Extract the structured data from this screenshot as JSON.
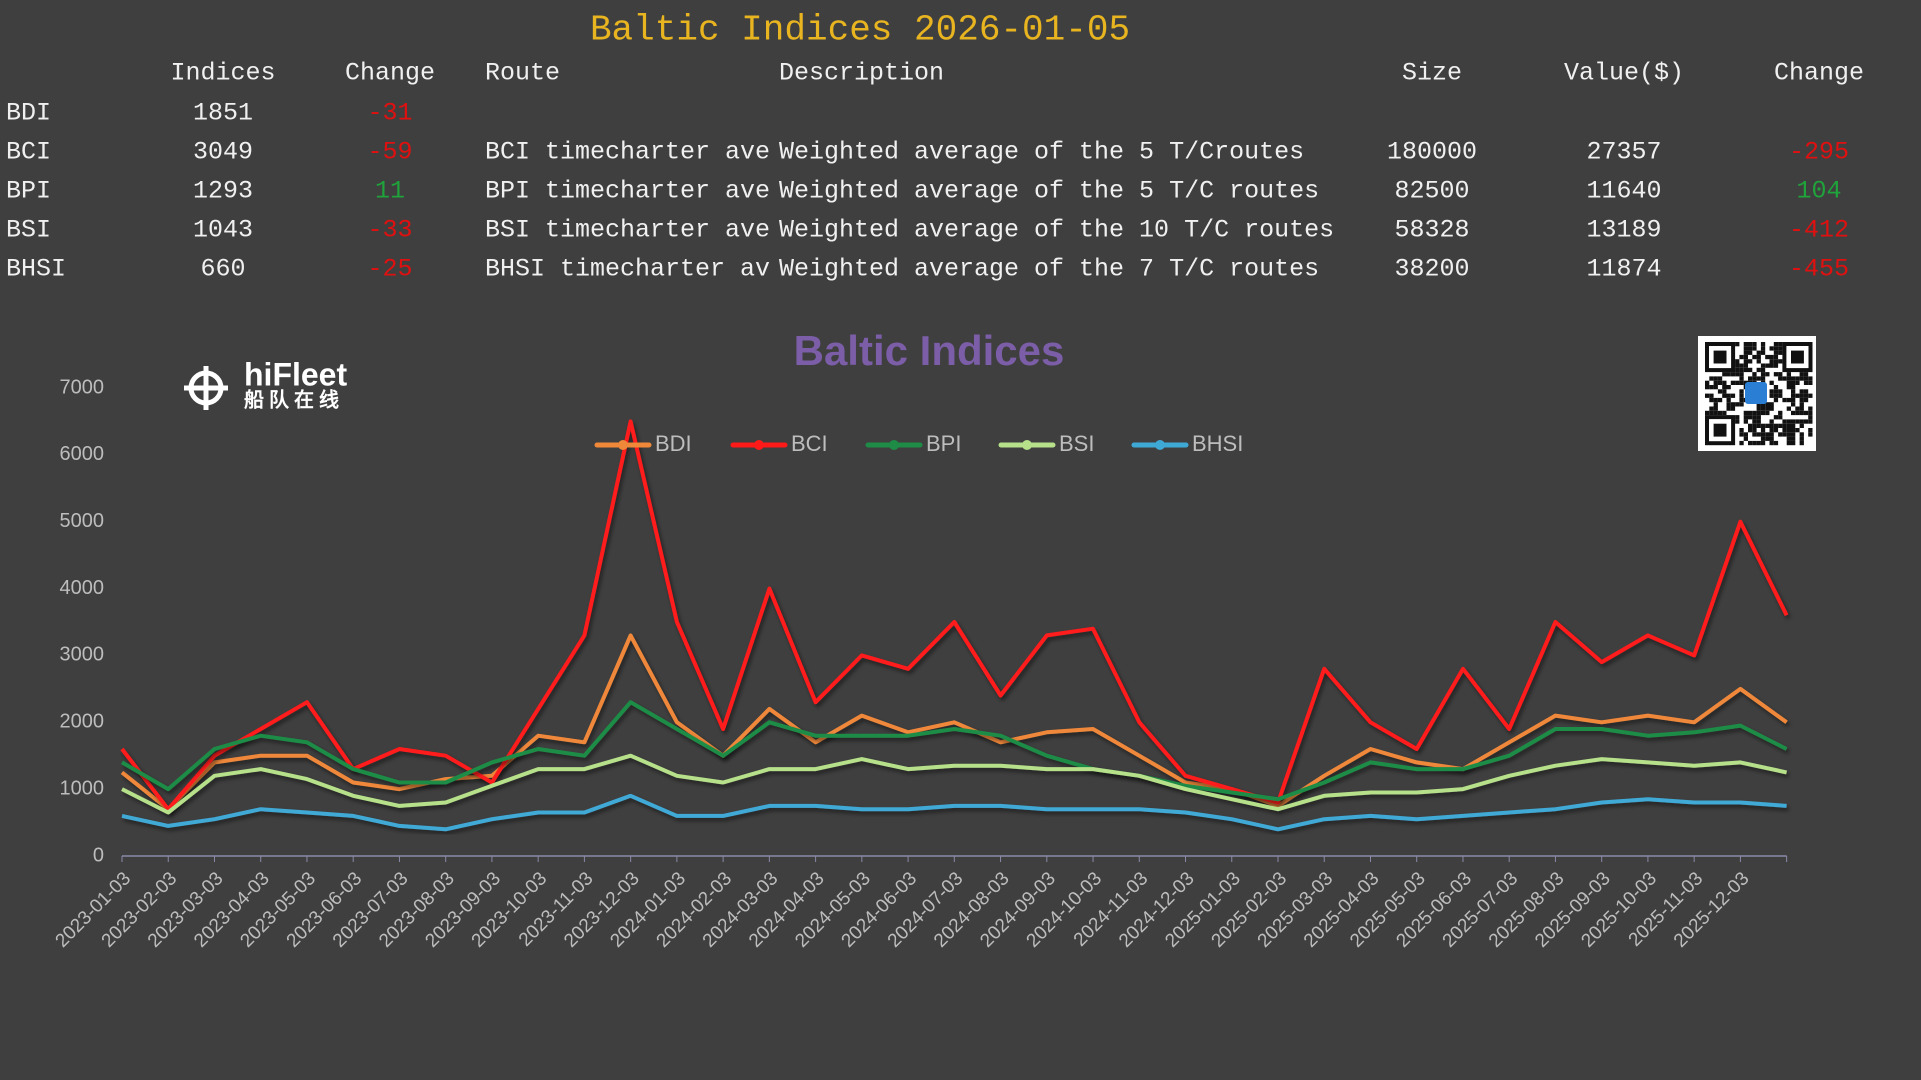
{
  "header": {
    "title": "Baltic Indices 2026-01-05"
  },
  "table": {
    "columns": [
      "Indices",
      "Change",
      "Route",
      "Description",
      "Size",
      "Value($)",
      "Change"
    ],
    "up_color": "#1fa33a",
    "down_color": "#e01010",
    "rows": [
      [
        "BDI",
        1851,
        -31
      ],
      [
        "BCI",
        3049,
        -59,
        "BCI timecharter ave",
        "Weighted average of the 5 T/Croutes",
        180000,
        27357,
        -295
      ],
      [
        "BPI",
        1293,
        11,
        "BPI timecharter ave",
        "Weighted average of the 5 T/C routes",
        82500,
        11640,
        104
      ],
      [
        "BSI",
        1043,
        -33,
        "BSI timecharter ave",
        "Weighted average of the 10 T/C routes",
        58328,
        13189,
        -412
      ],
      [
        "BHSI",
        660,
        -25,
        "BHSI timecharter av",
        "Weighted average of the 7 T/C routes",
        38200,
        11874,
        -455
      ]
    ]
  },
  "logo": {
    "name": "hiFleet",
    "subtitle": "船队在线"
  },
  "chart_data": {
    "type": "line",
    "title": "Baltic Indices",
    "categories": [
      "2023-01-03",
      "2023-02-03",
      "2023-03-03",
      "2023-04-03",
      "2023-05-03",
      "2023-06-03",
      "2023-07-03",
      "2023-08-03",
      "2023-09-03",
      "2023-10-03",
      "2023-11-03",
      "2023-12-03",
      "2024-01-03",
      "2024-02-03",
      "2024-03-03",
      "2024-04-03",
      "2024-05-03",
      "2024-06-03",
      "2024-07-03",
      "2024-08-03",
      "2024-09-03",
      "2024-10-03",
      "2024-11-03",
      "2024-12-03",
      "2025-01-03",
      "2025-02-03",
      "2025-03-03",
      "2025-04-03",
      "2025-05-03",
      "2025-06-03",
      "2025-07-03",
      "2025-08-03",
      "2025-09-03",
      "2025-10-03",
      "2025-11-03",
      "2025-12-03",
      null
    ],
    "ylim": [
      0,
      7000
    ],
    "yticks": [
      0,
      1000,
      2000,
      3000,
      4000,
      5000,
      6000,
      7000
    ],
    "grid": false,
    "legend": "top",
    "series": [
      {
        "name": "BDI",
        "color": "#f0883a",
        "values": [
          1250,
          700,
          1400,
          1500,
          1500,
          1100,
          1000,
          1150,
          1200,
          1800,
          1700,
          3300,
          2000,
          1500,
          2200,
          1700,
          2100,
          1850,
          2000,
          1700,
          1850,
          1900,
          1500,
          1100,
          1000,
          750,
          1200,
          1600,
          1400,
          1300,
          1700,
          2100,
          2000,
          2100,
          2000,
          2500,
          2000
        ]
      },
      {
        "name": "BCI",
        "color": "#ff1a1a",
        "values": [
          1600,
          700,
          1500,
          1900,
          2300,
          1300,
          1600,
          1500,
          1100,
          2200,
          3300,
          6500,
          3500,
          1900,
          4000,
          2300,
          3000,
          2800,
          3500,
          2400,
          3300,
          3400,
          2000,
          1200,
          1000,
          800,
          2800,
          2000,
          1600,
          2800,
          1900,
          3500,
          2900,
          3300,
          3000,
          5000,
          3600
        ]
      },
      {
        "name": "BPI",
        "color": "#1e8c46",
        "values": [
          1400,
          1000,
          1600,
          1800,
          1700,
          1300,
          1100,
          1100,
          1400,
          1600,
          1500,
          2300,
          1900,
          1500,
          2000,
          1800,
          1800,
          1800,
          1900,
          1800,
          1500,
          1300,
          1200,
          1050,
          950,
          850,
          1100,
          1400,
          1300,
          1300,
          1500,
          1900,
          1900,
          1800,
          1850,
          1950,
          1600
        ]
      },
      {
        "name": "BSI",
        "color": "#b6e08a",
        "values": [
          1000,
          650,
          1200,
          1300,
          1150,
          900,
          750,
          800,
          1050,
          1300,
          1300,
          1500,
          1200,
          1100,
          1300,
          1300,
          1450,
          1300,
          1350,
          1350,
          1300,
          1300,
          1200,
          1000,
          850,
          700,
          900,
          950,
          950,
          1000,
          1200,
          1350,
          1450,
          1400,
          1350,
          1400,
          1250
        ]
      },
      {
        "name": "BHSI",
        "color": "#3fa9d6",
        "values": [
          600,
          450,
          550,
          700,
          650,
          600,
          450,
          400,
          550,
          650,
          650,
          900,
          600,
          600,
          750,
          750,
          700,
          700,
          750,
          750,
          700,
          700,
          700,
          650,
          550,
          400,
          550,
          600,
          550,
          600,
          650,
          700,
          800,
          850,
          800,
          800,
          750
        ]
      }
    ]
  }
}
